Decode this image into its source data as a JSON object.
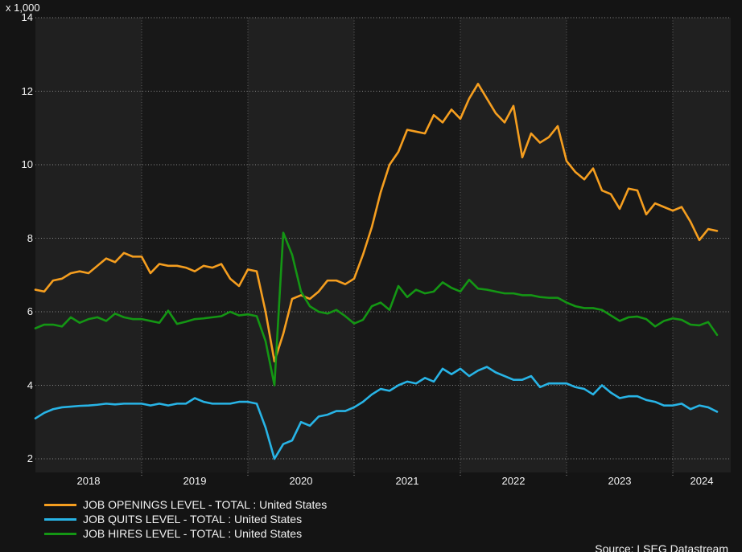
{
  "footer": {
    "source": "Source: LSEG Datastream"
  },
  "chart_data": {
    "type": "line",
    "unit_label": "x 1,000",
    "x_start": "2018-01",
    "x_end": "2024-06",
    "frequency": "monthly",
    "x_tick_years": [
      "2018",
      "2019",
      "2020",
      "2021",
      "2022",
      "2023",
      "2024"
    ],
    "y_ticks": [
      14,
      12,
      10,
      8,
      6,
      4,
      2
    ],
    "ylim": [
      1.6,
      14
    ],
    "grid": "dotted",
    "legend_position": "bottom-left",
    "plot_bands": {
      "alternating_years": true,
      "light": "#202020",
      "dark": "#181818"
    },
    "series": [
      {
        "name": "JOB OPENINGS LEVEL - TOTAL : United States",
        "color": "#F59E1F",
        "values": [
          6.6,
          6.55,
          6.85,
          6.9,
          7.05,
          7.1,
          7.05,
          7.25,
          7.45,
          7.35,
          7.6,
          7.5,
          7.5,
          7.05,
          7.3,
          7.25,
          7.25,
          7.2,
          7.1,
          7.25,
          7.2,
          7.3,
          6.9,
          6.7,
          7.15,
          7.1,
          6.0,
          4.65,
          5.4,
          6.35,
          6.45,
          6.35,
          6.55,
          6.85,
          6.85,
          6.75,
          6.9,
          7.55,
          8.3,
          9.25,
          10.0,
          10.35,
          10.95,
          10.9,
          10.85,
          11.35,
          11.15,
          11.5,
          11.25,
          11.8,
          12.2,
          11.8,
          11.4,
          11.15,
          11.6,
          10.2,
          10.85,
          10.6,
          10.75,
          11.05,
          10.1,
          9.8,
          9.6,
          9.9,
          9.3,
          9.2,
          8.8,
          9.35,
          9.3,
          8.65,
          8.95,
          8.85,
          8.75,
          8.85,
          8.45,
          7.95,
          8.25,
          8.2
        ]
      },
      {
        "name": "JOB QUITS LEVEL - TOTAL : United States",
        "color": "#28B4E6",
        "values": [
          3.1,
          3.25,
          3.35,
          3.4,
          3.42,
          3.44,
          3.45,
          3.47,
          3.5,
          3.48,
          3.5,
          3.5,
          3.5,
          3.45,
          3.5,
          3.45,
          3.5,
          3.5,
          3.65,
          3.55,
          3.5,
          3.5,
          3.5,
          3.55,
          3.55,
          3.5,
          2.85,
          2.0,
          2.4,
          2.5,
          3.0,
          2.9,
          3.15,
          3.2,
          3.3,
          3.3,
          3.4,
          3.55,
          3.75,
          3.9,
          3.85,
          4.0,
          4.1,
          4.05,
          4.2,
          4.1,
          4.45,
          4.3,
          4.45,
          4.25,
          4.4,
          4.5,
          4.35,
          4.25,
          4.15,
          4.15,
          4.25,
          3.95,
          4.05,
          4.05,
          4.05,
          3.95,
          3.9,
          3.75,
          4.0,
          3.8,
          3.65,
          3.7,
          3.7,
          3.6,
          3.55,
          3.45,
          3.45,
          3.5,
          3.35,
          3.45,
          3.4,
          3.28
        ]
      },
      {
        "name": "JOB HIRES LEVEL - TOTAL : United States",
        "color": "#149614",
        "values": [
          5.55,
          5.65,
          5.65,
          5.6,
          5.85,
          5.7,
          5.8,
          5.85,
          5.75,
          5.95,
          5.85,
          5.8,
          5.8,
          5.75,
          5.7,
          6.03,
          5.67,
          5.73,
          5.8,
          5.82,
          5.85,
          5.88,
          6.0,
          5.9,
          5.93,
          5.88,
          5.2,
          4.0,
          8.15,
          7.55,
          6.55,
          6.15,
          6.0,
          5.95,
          6.05,
          5.88,
          5.68,
          5.78,
          6.15,
          6.25,
          6.05,
          6.7,
          6.4,
          6.6,
          6.5,
          6.55,
          6.8,
          6.65,
          6.55,
          6.87,
          6.63,
          6.6,
          6.55,
          6.5,
          6.5,
          6.45,
          6.45,
          6.4,
          6.38,
          6.38,
          6.25,
          6.15,
          6.1,
          6.1,
          6.05,
          5.9,
          5.75,
          5.85,
          5.87,
          5.8,
          5.6,
          5.75,
          5.82,
          5.78,
          5.65,
          5.63,
          5.72,
          5.37
        ]
      }
    ]
  }
}
